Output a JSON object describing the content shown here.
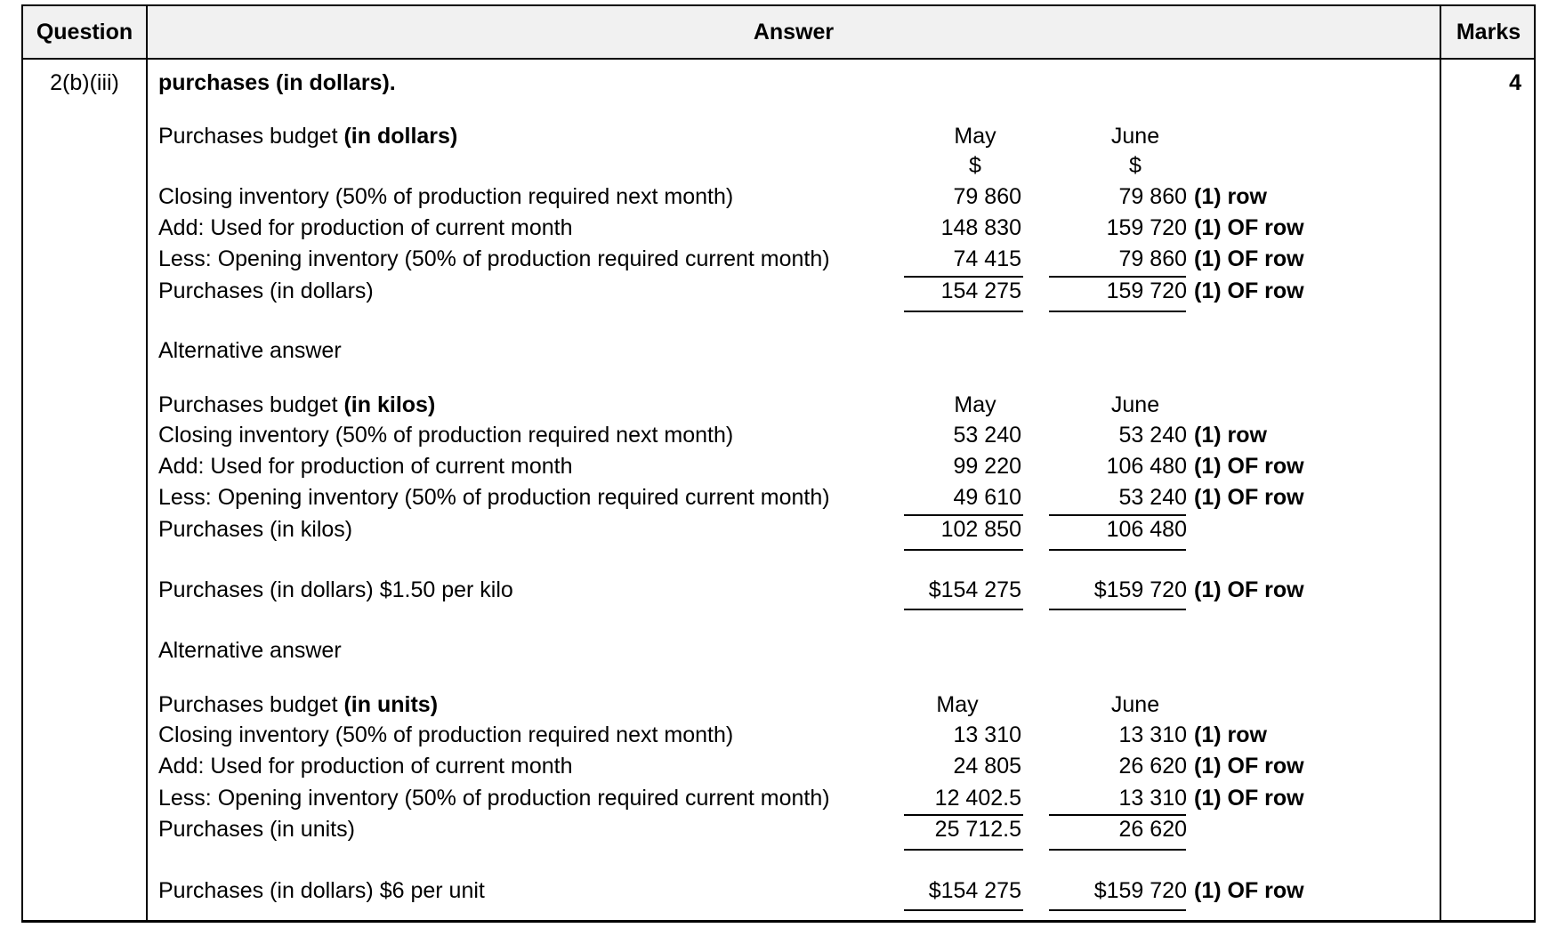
{
  "header": {
    "question": "Question",
    "answer": "Answer",
    "marks": "Marks"
  },
  "question_id": "2(b)(iii)",
  "marks_value": "4",
  "intro": "purchases (in dollars).",
  "sections": [
    {
      "title_prefix": "Purchases budget ",
      "title_bold": "(in dollars)",
      "may": "May",
      "june": "June",
      "may_unit": "$",
      "june_unit": "$",
      "rows": [
        {
          "label": "Closing inventory (50% of production required next month)",
          "may": "79 860",
          "june": "79 860",
          "note_mark": "(1)",
          "note": "row"
        },
        {
          "label": "Add: Used for production of current month",
          "may": "148 830",
          "june": "159 720",
          "note_mark": "(1)",
          "note": "OF row"
        },
        {
          "label": "Less: Opening inventory (50% of production required current month)",
          "may": "74 415",
          "june": "79 860",
          "note_mark": "(1)",
          "note": "OF row"
        },
        {
          "label": "Purchases (in dollars)",
          "may": "154 275",
          "june": "159 720",
          "note_mark": "(1)",
          "note": "OF row"
        }
      ]
    },
    {
      "alt": "Alternative answer",
      "title_prefix": "Purchases budget ",
      "title_bold": "(in kilos)",
      "may": "May",
      "june": "June",
      "rows": [
        {
          "label": "Closing inventory (50% of production required next month)",
          "may": "53 240",
          "june": "53 240",
          "note_mark": "(1)",
          "note": "row"
        },
        {
          "label": "Add: Used for production of current month",
          "may": "99 220",
          "june": "106 480",
          "note_mark": "(1)",
          "note": "OF row"
        },
        {
          "label": "Less: Opening inventory (50% of production required current month)",
          "may": "49 610",
          "june": "53 240",
          "note_mark": "(1)",
          "note": "OF row"
        },
        {
          "label": "Purchases (in kilos)",
          "may": "102 850",
          "june": "106 480"
        }
      ],
      "dollars": {
        "label": "Purchases (in dollars) $1.50 per kilo",
        "may": "$154 275",
        "june": "$159 720",
        "note_mark": "(1)",
        "note": "OF row"
      }
    },
    {
      "alt": "Alternative answer",
      "title_prefix": "Purchases budget ",
      "title_bold": "(in units)",
      "may": "May",
      "june": "June",
      "rows": [
        {
          "label": "Closing inventory (50% of production required next month)",
          "may": "13 310",
          "june": "13 310",
          "note_mark": "(1)",
          "note": "row"
        },
        {
          "label": "Add: Used for production of current month",
          "may": "24 805",
          "june": "26 620",
          "note_mark": "(1)",
          "note": "OF row"
        },
        {
          "label": "Less: Opening inventory (50% of production required current month)",
          "may": "12 402.5",
          "june": "13 310",
          "note_mark": "(1)",
          "note": "OF row"
        },
        {
          "label": "Purchases (in units)",
          "may": "25 712.5",
          "june": "26 620"
        }
      ],
      "dollars": {
        "label": "Purchases (in dollars) $6 per unit",
        "may": "$154 275",
        "june": "$159 720",
        "note_mark": "(1)",
        "note": "OF row"
      }
    }
  ]
}
